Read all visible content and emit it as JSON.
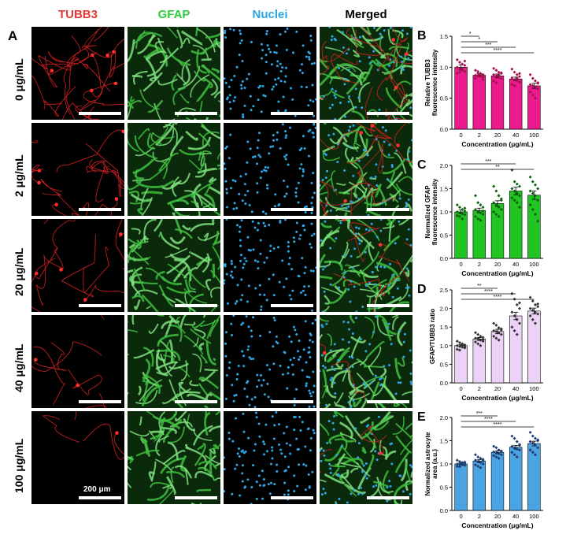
{
  "figure": {
    "panel_a_letter": "A",
    "columns": [
      {
        "label": "TUBB3",
        "color": "#e53935"
      },
      {
        "label": "GFAP",
        "color": "#2ecc40"
      },
      {
        "label": "Nuclei",
        "color": "#29a8e0"
      },
      {
        "label": "Merged",
        "color": "#000000"
      }
    ],
    "rows": [
      "0 μg/mL",
      "2 μg/mL",
      "20 μg/mL",
      "40 μg/mL",
      "100 μg/mL"
    ],
    "scale_bar_label": "200 μm"
  },
  "chart_data": [
    {
      "panel": "B",
      "type": "bar",
      "categories": [
        "0",
        "2",
        "20",
        "40",
        "100"
      ],
      "values": [
        1.0,
        0.87,
        0.86,
        0.81,
        0.7
      ],
      "errors": [
        0.04,
        0.02,
        0.03,
        0.03,
        0.04
      ],
      "points": [
        [
          1.12,
          1.08,
          1.05,
          1.03,
          1.0,
          0.97,
          0.95,
          0.93,
          0.9,
          0.92,
          0.98,
          1.1
        ],
        [
          0.95,
          0.93,
          0.9,
          0.88,
          0.87,
          0.86,
          0.85,
          0.84,
          0.82,
          0.9,
          0.89,
          0.8
        ],
        [
          0.98,
          0.95,
          0.92,
          0.9,
          0.88,
          0.86,
          0.84,
          0.82,
          0.78,
          0.75,
          0.87,
          0.91
        ],
        [
          0.97,
          0.92,
          0.88,
          0.85,
          0.83,
          0.8,
          0.78,
          0.76,
          0.72,
          0.7,
          0.82,
          0.9
        ],
        [
          0.88,
          0.82,
          0.78,
          0.75,
          0.72,
          0.7,
          0.68,
          0.65,
          0.6,
          0.55,
          0.5,
          0.74
        ]
      ],
      "ylim": [
        0,
        1.5
      ],
      "yticks": [
        0.0,
        0.5,
        1.0,
        1.5
      ],
      "ylabel": "Relative TUBB3 fluorescence intensity",
      "xlabel": "Concentration (μg/mL)",
      "bar_color": "#ec1a8c",
      "point_color": "#a0124f",
      "significance": [
        {
          "from": 0,
          "to": 1,
          "label": "*"
        },
        {
          "from": 0,
          "to": 2,
          "label": "*"
        },
        {
          "from": 0,
          "to": 3,
          "label": "***"
        },
        {
          "from": 0,
          "to": 4,
          "label": "****"
        }
      ]
    },
    {
      "panel": "C",
      "type": "bar",
      "categories": [
        "0",
        "2",
        "20",
        "40",
        "100"
      ],
      "values": [
        1.0,
        1.03,
        1.18,
        1.45,
        1.36
      ],
      "errors": [
        0.04,
        0.05,
        0.06,
        0.08,
        0.09
      ],
      "points": [
        [
          1.15,
          1.1,
          1.05,
          1.02,
          1.0,
          0.98,
          0.96,
          0.94,
          0.92,
          0.9,
          0.85,
          1.08
        ],
        [
          1.35,
          1.2,
          1.15,
          1.1,
          1.05,
          1.0,
          0.98,
          0.95,
          0.9,
          0.85,
          0.82,
          1.02
        ],
        [
          1.55,
          1.45,
          1.35,
          1.28,
          1.2,
          1.15,
          1.1,
          1.05,
          1.0,
          0.95,
          0.9,
          1.25
        ],
        [
          1.9,
          1.65,
          1.6,
          1.55,
          1.5,
          1.45,
          1.4,
          1.35,
          1.3,
          1.25,
          1.2,
          1.1
        ],
        [
          1.75,
          1.65,
          1.58,
          1.5,
          1.45,
          1.4,
          1.35,
          1.25,
          1.15,
          1.05,
          0.95,
          0.8
        ]
      ],
      "ylim": [
        0,
        2.0
      ],
      "yticks": [
        0.0,
        0.5,
        1.0,
        1.5,
        2.0
      ],
      "ylabel": "Normalized GFAP fluorescence intensity",
      "xlabel": "Concentration (μg/mL)",
      "bar_color": "#22c422",
      "point_color": "#0b5e0b",
      "significance": [
        {
          "from": 0,
          "to": 3,
          "label": "***"
        },
        {
          "from": 0,
          "to": 4,
          "label": "**"
        }
      ]
    },
    {
      "panel": "D",
      "type": "bar",
      "categories": [
        "0",
        "2",
        "20",
        "40",
        "100"
      ],
      "values": [
        1.0,
        1.18,
        1.38,
        1.8,
        1.93
      ],
      "errors": [
        0.03,
        0.04,
        0.06,
        0.1,
        0.08
      ],
      "points": [
        [
          1.12,
          1.08,
          1.05,
          1.02,
          1.0,
          0.98,
          0.96,
          0.94,
          0.9,
          0.88,
          1.03,
          0.97
        ],
        [
          1.35,
          1.3,
          1.25,
          1.22,
          1.2,
          1.18,
          1.15,
          1.12,
          1.1,
          1.05,
          1.0,
          1.16
        ],
        [
          1.6,
          1.55,
          1.48,
          1.45,
          1.4,
          1.38,
          1.35,
          1.3,
          1.25,
          1.2,
          1.15,
          1.42
        ],
        [
          2.4,
          2.25,
          2.1,
          2.0,
          1.9,
          1.8,
          1.7,
          1.6,
          1.5,
          1.4,
          1.3,
          2.15
        ],
        [
          2.3,
          2.2,
          2.1,
          2.05,
          2.0,
          1.95,
          1.9,
          1.85,
          1.8,
          1.7,
          1.6,
          2.12
        ]
      ],
      "ylim": [
        0,
        2.5
      ],
      "yticks": [
        0.0,
        0.5,
        1.0,
        1.5,
        2.0,
        2.5
      ],
      "ylabel": "GFAP/TUBB3 ratio",
      "xlabel": "Concentration (μg/mL)",
      "bar_color": "#ecd2f6",
      "point_color": "#333333",
      "significance": [
        {
          "from": 0,
          "to": 2,
          "label": "**"
        },
        {
          "from": 0,
          "to": 3,
          "label": "****"
        },
        {
          "from": 0,
          "to": 4,
          "label": "****"
        }
      ]
    },
    {
      "panel": "E",
      "type": "bar",
      "categories": [
        "0",
        "2",
        "20",
        "40",
        "100"
      ],
      "values": [
        1.0,
        1.06,
        1.25,
        1.36,
        1.44
      ],
      "errors": [
        0.02,
        0.03,
        0.03,
        0.04,
        0.05
      ],
      "points": [
        [
          1.08,
          1.05,
          1.03,
          1.02,
          1.0,
          0.99,
          0.98,
          0.97,
          0.95,
          0.94,
          1.01,
          1.04
        ],
        [
          1.2,
          1.15,
          1.12,
          1.1,
          1.08,
          1.05,
          1.03,
          1.0,
          0.98,
          0.95,
          0.92,
          1.07
        ],
        [
          1.38,
          1.35,
          1.3,
          1.28,
          1.26,
          1.24,
          1.22,
          1.2,
          1.18,
          1.15,
          1.12,
          1.27
        ],
        [
          1.6,
          1.55,
          1.48,
          1.42,
          1.38,
          1.35,
          1.32,
          1.3,
          1.25,
          1.2,
          1.15,
          1.4
        ],
        [
          1.68,
          1.6,
          1.55,
          1.5,
          1.48,
          1.45,
          1.4,
          1.35,
          1.3,
          1.25,
          1.2,
          1.52
        ]
      ],
      "ylim": [
        0,
        2.0
      ],
      "yticks": [
        0.0,
        0.5,
        1.0,
        1.5,
        2.0
      ],
      "ylabel": "Normalized astrocyte area (a.u.)",
      "xlabel": "Concentration (μg/mL)",
      "bar_color": "#4aa3e2",
      "point_color": "#1f3b6e",
      "significance": [
        {
          "from": 0,
          "to": 2,
          "label": "***"
        },
        {
          "from": 0,
          "to": 3,
          "label": "****"
        },
        {
          "from": 0,
          "to": 4,
          "label": "****"
        }
      ]
    }
  ]
}
